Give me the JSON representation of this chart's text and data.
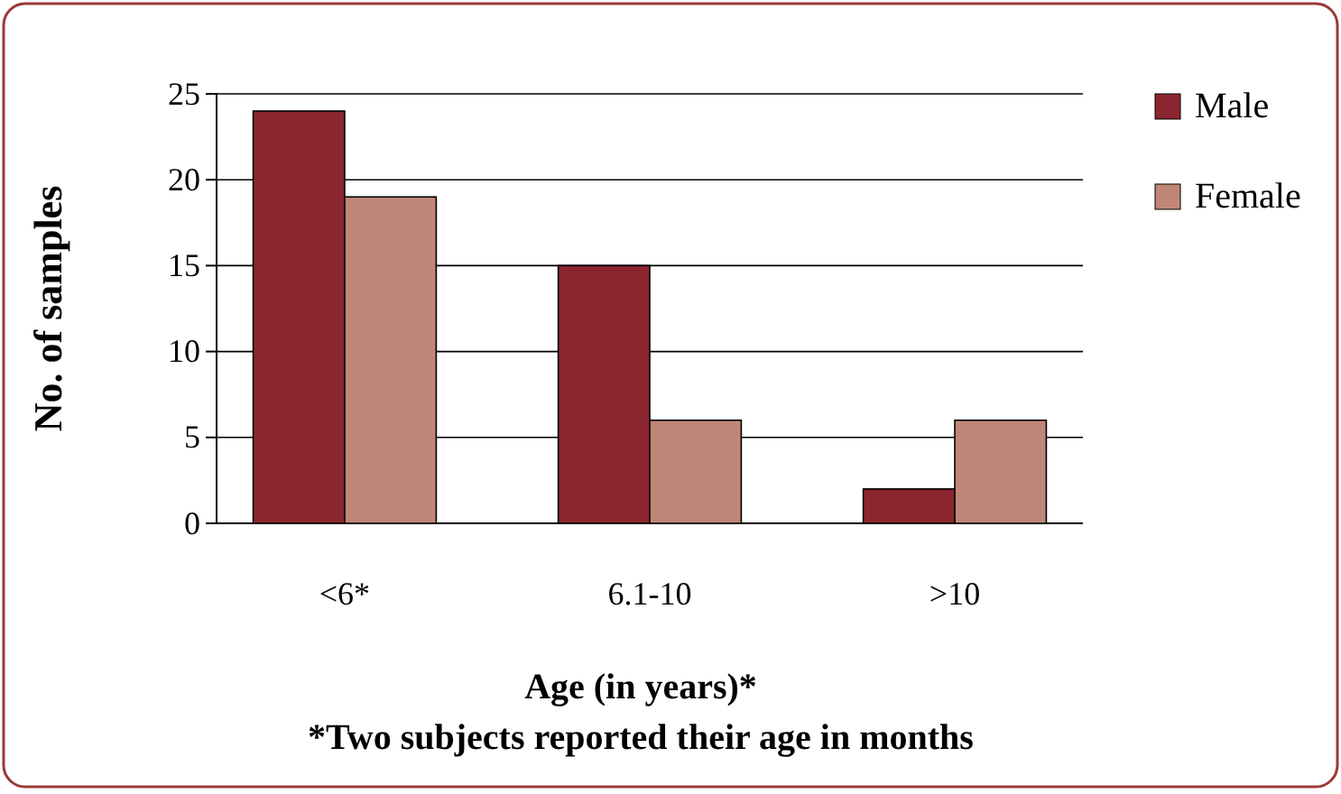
{
  "chart_data": {
    "type": "bar",
    "categories": [
      "<6*",
      "6.1-10",
      ">10"
    ],
    "series": [
      {
        "name": "Male",
        "color": "#8b2630",
        "values": [
          24,
          15,
          2
        ]
      },
      {
        "name": "Female",
        "color": "#c08677",
        "values": [
          19,
          6,
          6
        ]
      }
    ],
    "ylim": [
      0,
      25
    ],
    "yticks": [
      0,
      5,
      10,
      15,
      20,
      25
    ],
    "grid": "y",
    "legend": "top right",
    "ylabel": "No. of samples",
    "xlabel": "Age (in years)*",
    "annotations": [
      "*Two subjects reported their age in months"
    ]
  }
}
